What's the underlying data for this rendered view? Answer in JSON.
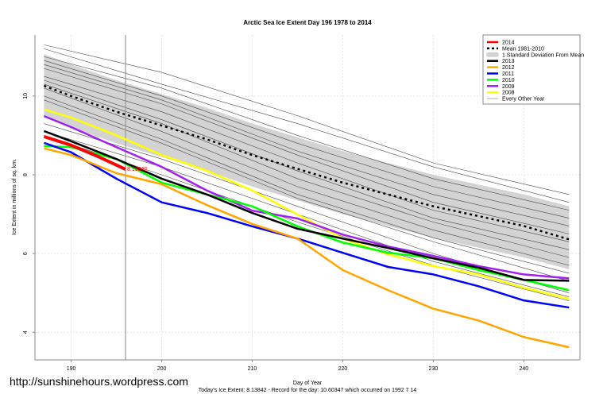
{
  "chart_data": {
    "type": "line",
    "title": "Arctic Sea Ice Extent Day 196 1978 to 2014",
    "xlabel": "Day of Year",
    "ylabel": "Ice Extent in millions of sq. km.",
    "xlim": [
      186,
      246.2
    ],
    "ylim": [
      3.3,
      11.55
    ],
    "xticks": [
      190,
      200,
      210,
      220,
      230,
      240
    ],
    "yticks": [
      4,
      6,
      8,
      10
    ],
    "grid": true,
    "legend_position": "top-right",
    "x": [
      187,
      190,
      195,
      200,
      205,
      210,
      215,
      220,
      225,
      230,
      235,
      240,
      245
    ],
    "std_band": {
      "name": "1 Standard Deviation From Mean",
      "color": "#d3d3d3",
      "upper": [
        11.06,
        10.8,
        10.4,
        10.05,
        9.7,
        9.3,
        8.95,
        8.6,
        8.3,
        8.0,
        7.75,
        7.5,
        7.2
      ],
      "lower": [
        9.46,
        9.2,
        8.8,
        8.45,
        8.1,
        7.7,
        7.35,
        7.0,
        6.7,
        6.4,
        6.15,
        5.9,
        5.6
      ]
    },
    "mean": {
      "name": "Mean 1981-2010",
      "color": "#000000",
      "values": [
        10.26,
        10.0,
        9.6,
        9.25,
        8.9,
        8.5,
        8.15,
        7.8,
        7.5,
        7.2,
        6.95,
        6.7,
        6.36
      ]
    },
    "series": [
      {
        "name": "2014",
        "color": "#ff0000",
        "x": [
          187,
          190,
          193,
          196
        ],
        "values": [
          8.97,
          8.75,
          8.46,
          8.14
        ]
      },
      {
        "name": "2013",
        "color": "#000000",
        "values": [
          9.11,
          8.85,
          8.4,
          7.9,
          7.5,
          7.03,
          6.63,
          6.38,
          6.14,
          5.88,
          5.64,
          5.33,
          5.31
        ]
      },
      {
        "name": "2012",
        "color": "#ffa500",
        "values": [
          8.67,
          8.5,
          8.04,
          7.76,
          7.23,
          6.75,
          6.38,
          5.58,
          5.07,
          4.6,
          4.3,
          3.88,
          3.62
        ]
      },
      {
        "name": "2011",
        "color": "#0000ff",
        "values": [
          8.81,
          8.57,
          7.9,
          7.3,
          7.03,
          6.69,
          6.38,
          6.02,
          5.66,
          5.47,
          5.17,
          4.81,
          4.63
        ]
      },
      {
        "name": "2010",
        "color": "#00ff00",
        "values": [
          8.73,
          8.7,
          8.4,
          7.8,
          7.5,
          7.2,
          6.69,
          6.28,
          6.02,
          5.88,
          5.58,
          5.33,
          5.07
        ]
      },
      {
        "name": "2009",
        "color": "#a020f0",
        "values": [
          9.49,
          9.21,
          8.7,
          8.2,
          7.6,
          7.09,
          6.89,
          6.48,
          6.18,
          5.94,
          5.68,
          5.47,
          5.37
        ]
      },
      {
        "name": "2008",
        "color": "#ffff00",
        "values": [
          9.66,
          9.45,
          9.0,
          8.5,
          8.1,
          7.6,
          6.99,
          6.38,
          5.98,
          5.68,
          5.47,
          5.13,
          4.85
        ]
      }
    ],
    "other_years": {
      "name": "Every Other Year",
      "color": "#555555",
      "x": [
        187,
        200,
        215,
        230,
        245
      ],
      "series": [
        [
          11.3,
          10.6,
          9.5,
          8.3,
          7.5
        ],
        [
          11.2,
          10.3,
          9.3,
          8.2,
          7.3
        ],
        [
          11.0,
          10.2,
          9.0,
          7.9,
          7.1
        ],
        [
          10.9,
          10.0,
          8.8,
          7.7,
          6.9
        ],
        [
          10.8,
          9.9,
          8.6,
          7.5,
          6.7
        ],
        [
          10.7,
          9.8,
          8.5,
          7.3,
          6.5
        ],
        [
          10.5,
          9.6,
          8.3,
          7.1,
          6.3
        ],
        [
          10.4,
          9.4,
          8.1,
          6.9,
          6.1
        ],
        [
          10.3,
          9.3,
          7.9,
          6.8,
          5.9
        ],
        [
          10.2,
          9.1,
          7.7,
          6.6,
          5.7
        ],
        [
          10.0,
          8.9,
          7.5,
          6.4,
          5.5
        ],
        [
          9.9,
          8.8,
          7.4,
          6.3,
          5.3
        ],
        [
          9.3,
          8.4,
          7.2,
          6.0,
          5.0
        ],
        [
          9.0,
          8.0,
          6.8,
          5.7,
          4.8
        ],
        [
          9.1,
          8.2,
          7.0,
          5.8,
          4.9
        ]
      ]
    },
    "today_marker": {
      "day": 196,
      "label": "8.13842",
      "color": "#ff0000"
    },
    "footer": "Today's Ice Extent: 8.13842  - Record for the day: 10.60347 which occurred on 1992 7 14"
  },
  "watermark": "http://sunshinehours.wordpress.com"
}
